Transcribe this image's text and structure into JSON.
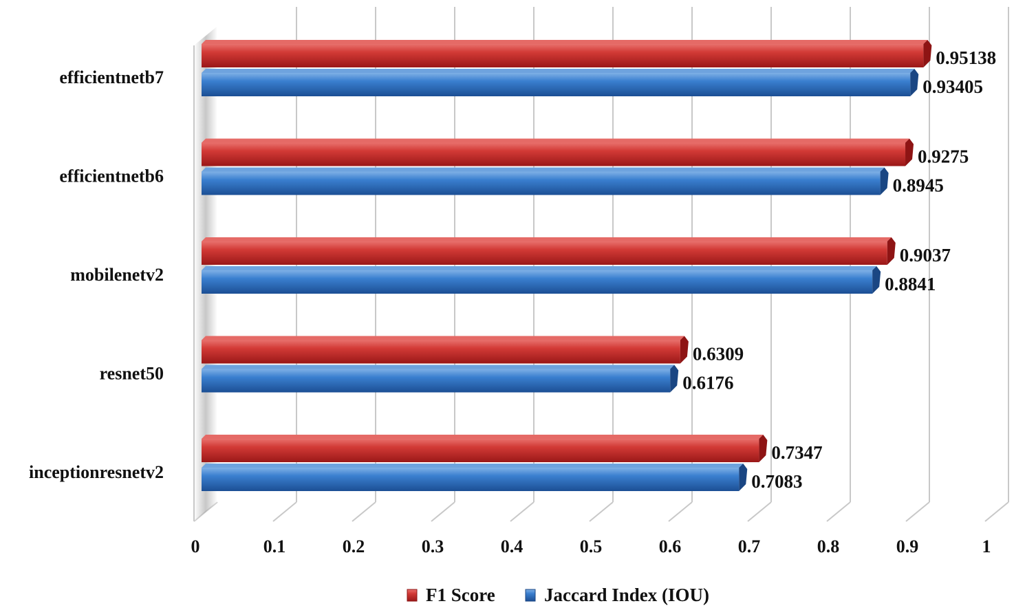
{
  "chart_data": {
    "type": "bar",
    "orientation": "horizontal",
    "style": "3d",
    "categories": [
      "efficientnetb7",
      "efficientnetb6",
      "mobilenetv2",
      "resnet50",
      "inceptionresnetv2"
    ],
    "series": [
      {
        "name": "F1 Score",
        "color": "#cc2a2a",
        "values": [
          0.95138,
          0.9275,
          0.9037,
          0.6309,
          0.7347
        ],
        "labels": [
          "0.95138",
          "0.9275",
          "0.9037",
          "0.6309",
          "0.7347"
        ]
      },
      {
        "name": "Jaccard Index (IOU)",
        "color": "#2f6bbf",
        "values": [
          0.93405,
          0.8945,
          0.8841,
          0.6176,
          0.7083
        ],
        "labels": [
          "0.93405",
          "0.8945",
          "0.8841",
          "0.6176",
          "0.7083"
        ]
      }
    ],
    "x_ticks": [
      "0",
      "0.1",
      "0.2",
      "0.3",
      "0.4",
      "0.5",
      "0.6",
      "0.7",
      "0.8",
      "0.9",
      "1"
    ],
    "xlim": [
      0,
      1
    ],
    "grid": true,
    "legend": "bottom",
    "title": "",
    "xlabel": "",
    "ylabel": ""
  }
}
